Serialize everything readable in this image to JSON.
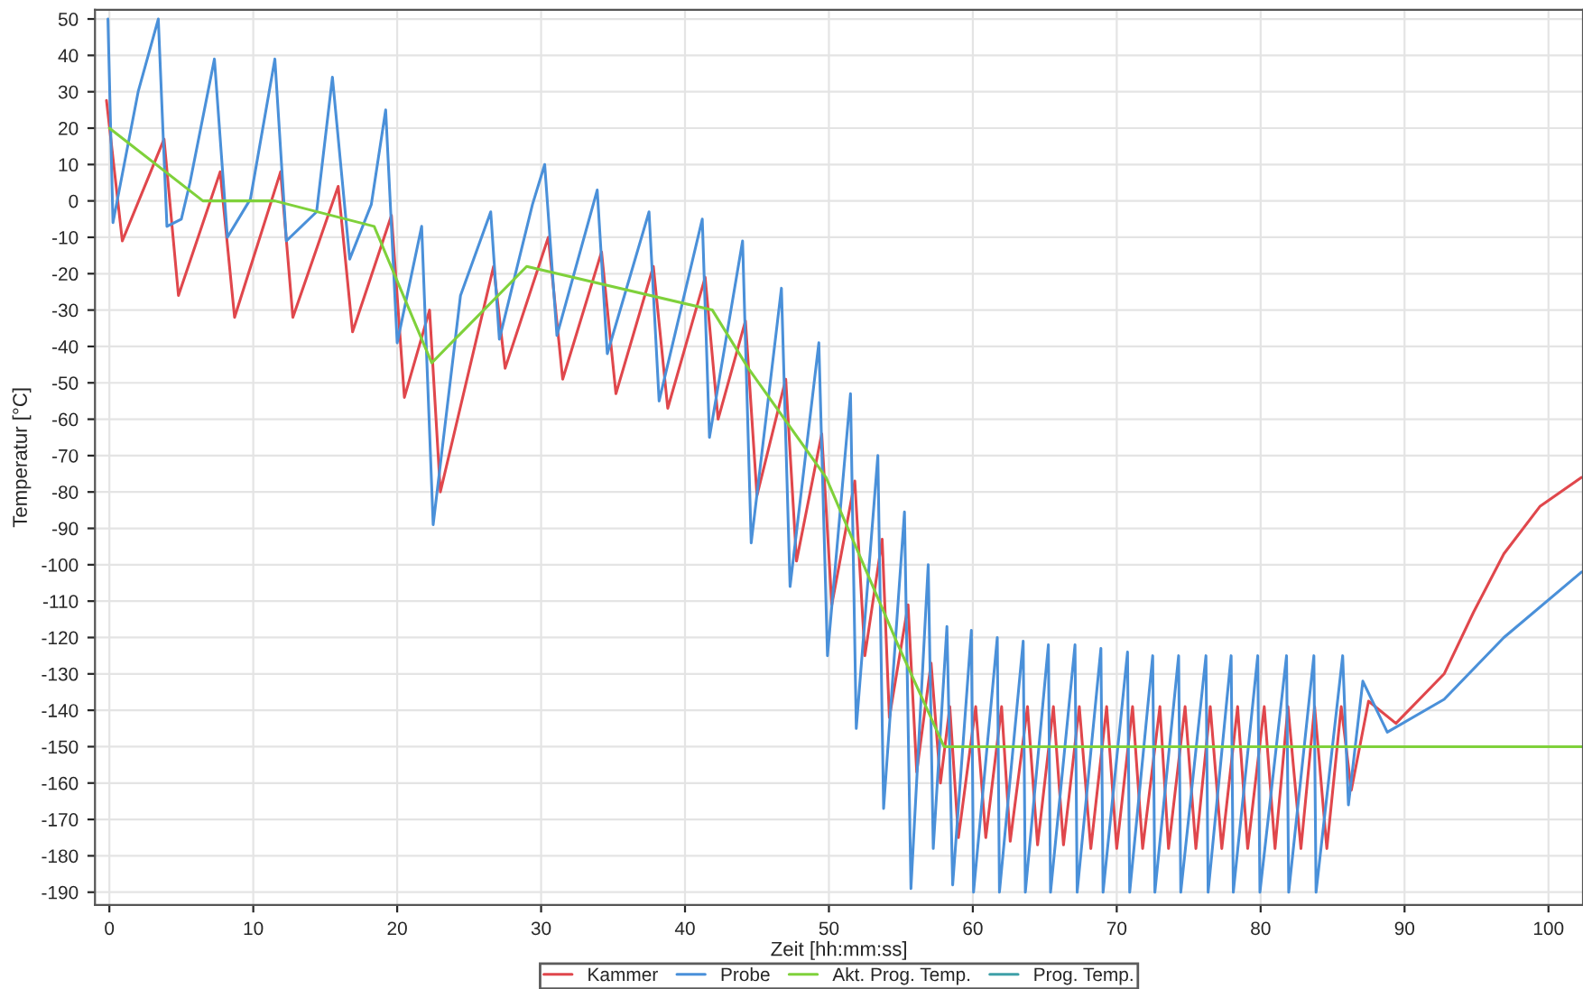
{
  "chart_data": {
    "type": "line",
    "xlabel": "Zeit [hh:mm:ss]",
    "ylabel": "Temperatur [°C]",
    "xlim": [
      -1,
      102.4
    ],
    "ylim": [
      -193.5,
      52.5
    ],
    "xticks": [
      0,
      10,
      20,
      30,
      40,
      50,
      60,
      70,
      80,
      90,
      100
    ],
    "yticks": [
      -190,
      -180,
      -170,
      -160,
      -150,
      -140,
      -130,
      -120,
      -110,
      -100,
      -90,
      -80,
      -70,
      -60,
      -50,
      -40,
      -30,
      -20,
      -10,
      0,
      10,
      20,
      30,
      40,
      50
    ],
    "grid": true,
    "legend": "bottom",
    "marker": "none",
    "line_style": "solid",
    "series": [
      {
        "name": "Kammer",
        "color": "#e0474c",
        "x": [
          -0.2,
          0.9,
          3.8,
          4.8,
          7.7,
          8.7,
          11.9,
          12.75,
          15.9,
          16.9,
          19.6,
          20.5,
          22.25,
          23,
          26.7,
          27.5,
          30.5,
          31.5,
          34.2,
          35.2,
          37.8,
          38.8,
          41.4,
          42.3,
          44.2,
          45,
          47,
          47.75,
          49.5,
          50.2,
          51.8,
          52.5,
          53.7,
          54.2,
          55.5,
          56.1,
          57.1,
          57.75,
          58.4,
          59,
          60.2,
          60.9,
          62,
          62.6,
          63.8,
          64.5,
          65.6,
          66.3,
          67.4,
          68.2,
          69.3,
          70,
          71.1,
          71.8,
          73,
          73.6,
          74.75,
          75.5,
          76.5,
          77.3,
          78.4,
          79.1,
          80.25,
          81,
          81.9,
          82.8,
          83.75,
          84.6,
          85.6,
          86.3,
          87.5,
          89.4,
          92.75,
          94.8,
          96.9,
          99.4,
          102.3
        ],
        "values": [
          27.6,
          -11,
          17,
          -26,
          8,
          -32,
          8,
          -32,
          4,
          -36,
          -4,
          -54,
          -30,
          -80,
          -18,
          -46,
          -10,
          -49,
          -14,
          -53,
          -18,
          -57,
          -21,
          -60,
          -33,
          -81,
          -49,
          -99,
          -64,
          -111,
          -77,
          -125,
          -93,
          -142,
          -111,
          -157,
          -127,
          -160,
          -139,
          -175,
          -139,
          -175,
          -139,
          -176,
          -139,
          -177,
          -139,
          -177,
          -139,
          -178,
          -139,
          -178,
          -139,
          -178,
          -139,
          -178,
          -139,
          -178,
          -139,
          -178,
          -139,
          -178,
          -139,
          -178,
          -139,
          -178,
          -139,
          -178,
          -139,
          -162,
          -137.5,
          -143.6,
          -130,
          -113,
          -97,
          -84,
          -76
        ]
      },
      {
        "name": "Probe",
        "color": "#4a90d9",
        "x": [
          -0.1,
          0.25,
          2,
          3.4,
          4,
          5,
          5.6,
          7.3,
          8.2,
          9.8,
          11.5,
          12.3,
          14.4,
          15.5,
          16.7,
          18.2,
          19.2,
          20,
          21.7,
          22.5,
          24.4,
          26.5,
          27.1,
          29.4,
          30.25,
          31.1,
          33.9,
          34.6,
          37.5,
          38.2,
          41.2,
          41.7,
          44,
          44.6,
          46.7,
          47.3,
          49.3,
          49.9,
          51.5,
          51.9,
          53.4,
          53.8,
          55.25,
          55.7,
          56.9,
          57.25,
          58.2,
          58.6,
          59.9,
          60.05,
          61.7,
          61.85,
          63.5,
          63.65,
          65.25,
          65.4,
          67.1,
          67.25,
          68.9,
          69.05,
          70.75,
          70.9,
          72.5,
          72.65,
          74.3,
          74.45,
          76.2,
          76.35,
          77.95,
          78.1,
          79.8,
          79.95,
          81.8,
          81.95,
          83.7,
          83.85,
          85.7,
          86.1,
          87.1,
          88.8,
          92.75,
          96.9,
          102.3
        ],
        "values": [
          50,
          -6,
          30,
          50,
          -7,
          -5,
          5,
          39,
          -10,
          0.5,
          39,
          -11,
          -3,
          34,
          -16,
          -1,
          25,
          -39,
          -7,
          -89,
          -26,
          -3,
          -38,
          -1,
          10,
          -37,
          3,
          -42,
          -3,
          -55,
          -5,
          -65,
          -11,
          -94,
          -24,
          -106,
          -39,
          -125,
          -53,
          -145,
          -70,
          -167,
          -85.5,
          -189,
          -100,
          -178,
          -117,
          -188,
          -118,
          -190,
          -120,
          -190,
          -121,
          -190,
          -122,
          -190,
          -122,
          -190,
          -123,
          -190,
          -124,
          -190,
          -125,
          -190,
          -125,
          -190,
          -125,
          -190,
          -125,
          -190,
          -125,
          -190,
          -125,
          -190,
          -125,
          -190,
          -125,
          -166,
          -132,
          -146,
          -137,
          -120,
          -102
        ]
      },
      {
        "name": "Akt. Prog. Temp.",
        "color": "#7fd13b",
        "x": [
          0,
          6.5,
          11.5,
          18.4,
          22.4,
          29,
          41.9,
          44.4,
          49.8,
          54.8,
          58,
          102.4
        ],
        "values": [
          20,
          0,
          0,
          -7,
          -44.5,
          -18,
          -30,
          -46,
          -76,
          -122,
          -150,
          -150
        ]
      },
      {
        "name": "Prog. Temp.",
        "color": "#3fa0a8"
      }
    ]
  }
}
